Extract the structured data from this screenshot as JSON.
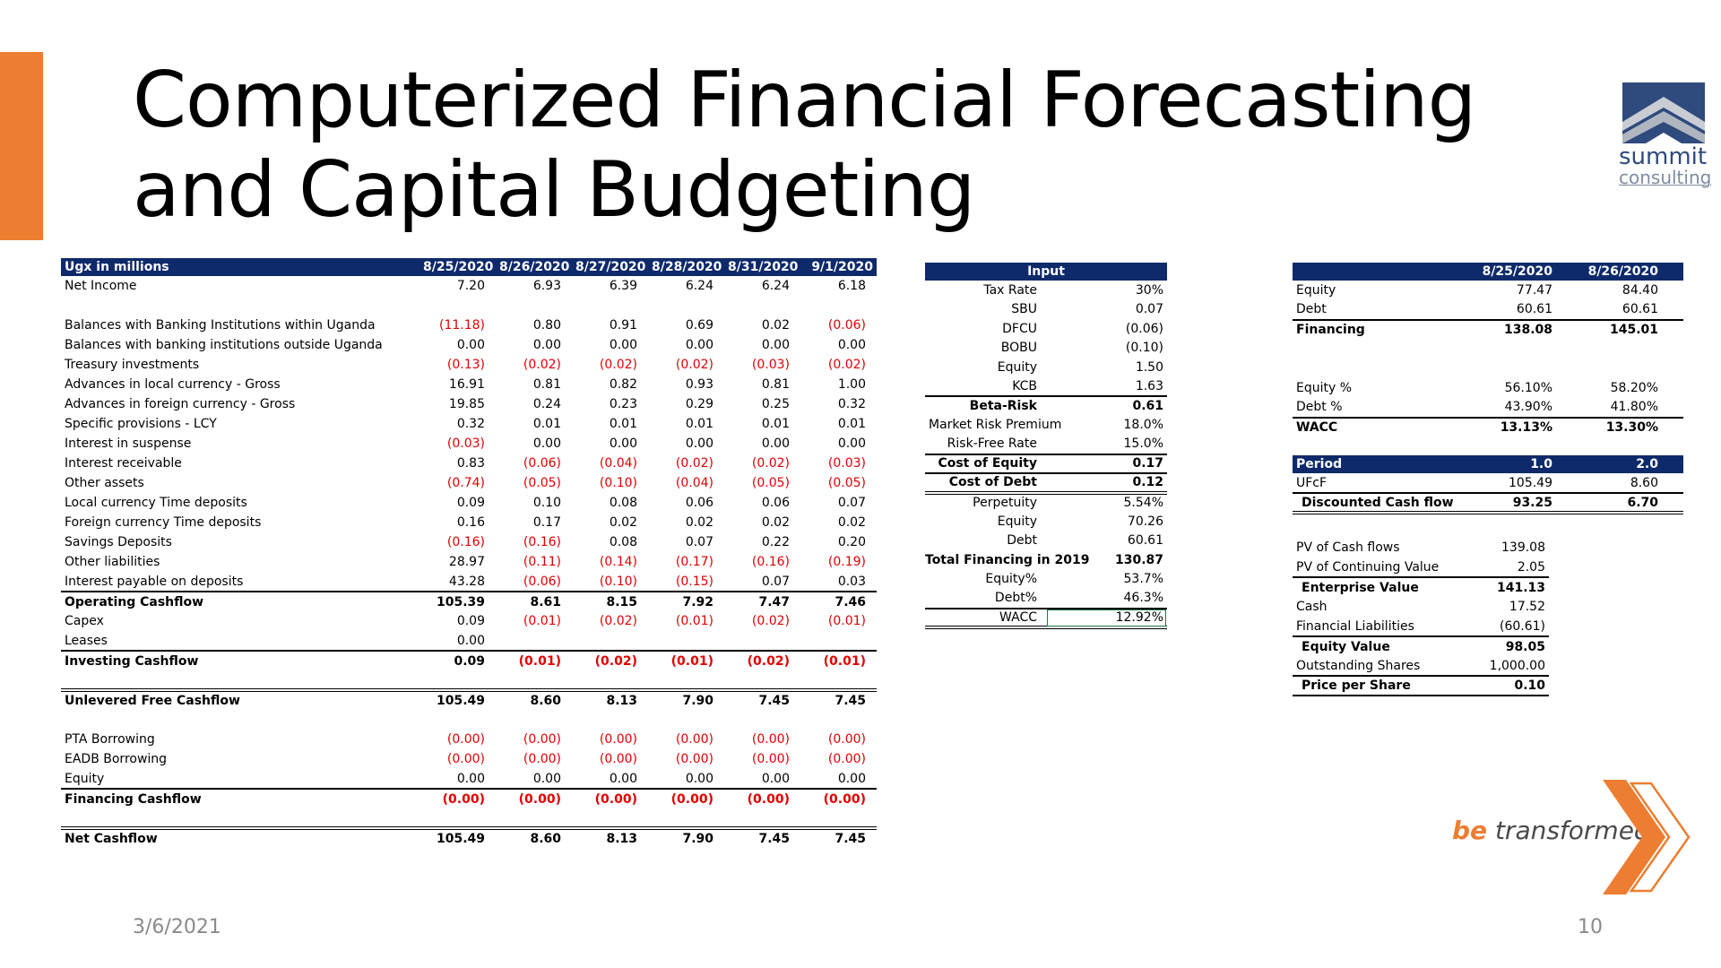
{
  "slide": {
    "title": "Computerized Financial Forecasting and Capital Budgeting",
    "date": "3/6/2021",
    "page_number": "10",
    "tagline_be": "be",
    "tagline_rest": " transformed",
    "logo_line1": "summit",
    "logo_line2": "consulting",
    "colors": {
      "accent": "#ed7d31",
      "header": "#0f2a6b",
      "negative": "#e00000"
    }
  },
  "cashflow": {
    "header": [
      "Ugx in millions",
      "8/25/2020",
      "8/26/2020",
      "8/27/2020",
      "8/28/2020",
      "8/31/2020",
      "9/1/2020"
    ],
    "rows": [
      {
        "label": "Net Income",
        "values": [
          "7.20",
          "6.93",
          "6.39",
          "6.24",
          "6.24",
          "6.18"
        ],
        "style": ""
      },
      {
        "label": "",
        "values": [
          "",
          "",
          "",
          "",
          "",
          ""
        ],
        "style": ""
      },
      {
        "label": "Balances with Banking Institutions within Uganda",
        "values": [
          "(11.18)",
          "0.80",
          "0.91",
          "0.69",
          "0.02",
          "(0.06)"
        ],
        "style": ""
      },
      {
        "label": "Balances with banking institutions outside Uganda",
        "values": [
          "0.00",
          "0.00",
          "0.00",
          "0.00",
          "0.00",
          "0.00"
        ],
        "style": ""
      },
      {
        "label": "Treasury investments",
        "values": [
          "(0.13)",
          "(0.02)",
          "(0.02)",
          "(0.02)",
          "(0.03)",
          "(0.02)"
        ],
        "style": ""
      },
      {
        "label": "Advances in local currency - Gross",
        "values": [
          "16.91",
          "0.81",
          "0.82",
          "0.93",
          "0.81",
          "1.00"
        ],
        "style": ""
      },
      {
        "label": "Advances in foreign currency - Gross",
        "values": [
          "19.85",
          "0.24",
          "0.23",
          "0.29",
          "0.25",
          "0.32"
        ],
        "style": ""
      },
      {
        "label": "Specific provisions - LCY",
        "values": [
          "0.32",
          "0.01",
          "0.01",
          "0.01",
          "0.01",
          "0.01"
        ],
        "style": ""
      },
      {
        "label": "Interest in suspense",
        "values": [
          "(0.03)",
          "0.00",
          "0.00",
          "0.00",
          "0.00",
          "0.00"
        ],
        "style": ""
      },
      {
        "label": "Interest receivable",
        "values": [
          "0.83",
          "(0.06)",
          "(0.04)",
          "(0.02)",
          "(0.02)",
          "(0.03)"
        ],
        "style": ""
      },
      {
        "label": "Other assets",
        "values": [
          "(0.74)",
          "(0.05)",
          "(0.10)",
          "(0.04)",
          "(0.05)",
          "(0.05)"
        ],
        "style": ""
      },
      {
        "label": "Local currency Time deposits",
        "values": [
          "0.09",
          "0.10",
          "0.08",
          "0.06",
          "0.06",
          "0.07"
        ],
        "style": ""
      },
      {
        "label": "Foreign currency Time  deposits",
        "values": [
          "0.16",
          "0.17",
          "0.02",
          "0.02",
          "0.02",
          "0.02"
        ],
        "style": ""
      },
      {
        "label": "Savings Deposits",
        "values": [
          "(0.16)",
          "(0.16)",
          "0.08",
          "0.07",
          "0.22",
          "0.20"
        ],
        "style": ""
      },
      {
        "label": "Other liabilities",
        "values": [
          "28.97",
          "(0.11)",
          "(0.14)",
          "(0.17)",
          "(0.16)",
          "(0.19)"
        ],
        "style": ""
      },
      {
        "label": "Interest payable on deposits",
        "values": [
          "43.28",
          "(0.06)",
          "(0.10)",
          "(0.15)",
          "0.07",
          "0.03"
        ],
        "style": ""
      },
      {
        "label": "Operating Cashflow",
        "values": [
          "105.39",
          "8.61",
          "8.15",
          "7.92",
          "7.47",
          "7.46"
        ],
        "style": "total"
      },
      {
        "label": "Capex",
        "values": [
          "0.09",
          "(0.01)",
          "(0.02)",
          "(0.01)",
          "(0.02)",
          "(0.01)"
        ],
        "style": ""
      },
      {
        "label": "Leases",
        "values": [
          "0.00",
          "",
          "",
          "",
          "",
          ""
        ],
        "style": ""
      },
      {
        "label": "Investing Cashflow",
        "values": [
          "0.09",
          "(0.01)",
          "(0.02)",
          "(0.01)",
          "(0.02)",
          "(0.01)"
        ],
        "style": "total"
      },
      {
        "label": "",
        "values": [
          "",
          "",
          "",
          "",
          "",
          ""
        ],
        "style": ""
      },
      {
        "label": "Unlevered Free Cashflow",
        "values": [
          "105.49",
          "8.60",
          "8.13",
          "7.90",
          "7.45",
          "7.45"
        ],
        "style": "dbl"
      },
      {
        "label": "",
        "values": [
          "",
          "",
          "",
          "",
          "",
          ""
        ],
        "style": ""
      },
      {
        "label": "PTA Borrowing",
        "values": [
          "(0.00)",
          "(0.00)",
          "(0.00)",
          "(0.00)",
          "(0.00)",
          "(0.00)"
        ],
        "style": ""
      },
      {
        "label": "EADB Borrowing",
        "values": [
          "(0.00)",
          "(0.00)",
          "(0.00)",
          "(0.00)",
          "(0.00)",
          "(0.00)"
        ],
        "style": ""
      },
      {
        "label": "Equity",
        "values": [
          "0.00",
          "0.00",
          "0.00",
          "0.00",
          "0.00",
          "0.00"
        ],
        "style": ""
      },
      {
        "label": "Financing Cashflow",
        "values": [
          "(0.00)",
          "(0.00)",
          "(0.00)",
          "(0.00)",
          "(0.00)",
          "(0.00)"
        ],
        "style": "total"
      },
      {
        "label": "",
        "values": [
          "",
          "",
          "",
          "",
          "",
          ""
        ],
        "style": ""
      },
      {
        "label": "Net Cashflow",
        "values": [
          "105.49",
          "8.60",
          "8.13",
          "7.90",
          "7.45",
          "7.45"
        ],
        "style": "dbl"
      }
    ]
  },
  "input": {
    "header": "Input",
    "rows": [
      {
        "label": "Tax Rate",
        "value": "30%",
        "style": ""
      },
      {
        "label": "SBU",
        "value": "0.07",
        "style": ""
      },
      {
        "label": "DFCU",
        "value": "(0.06)",
        "style": ""
      },
      {
        "label": "BOBU",
        "value": "(0.10)",
        "style": ""
      },
      {
        "label": "Equity",
        "value": "1.50",
        "style": ""
      },
      {
        "label": "KCB",
        "value": "1.63",
        "style": ""
      },
      {
        "label": "Beta-Risk",
        "value": "0.61",
        "style": "bold bt"
      },
      {
        "label": "Market Risk Premium",
        "value": "18.0%",
        "style": ""
      },
      {
        "label": "Risk-Free Rate",
        "value": "15.0%",
        "style": ""
      },
      {
        "label": "Cost of Equity",
        "value": "0.17",
        "style": "bold bt"
      },
      {
        "label": "Cost of Debt",
        "value": "0.12",
        "style": "bold bt"
      },
      {
        "label": "Perpetuity",
        "value": "5.54%",
        "style": "dbl"
      },
      {
        "label": "Equity",
        "value": "70.26",
        "style": ""
      },
      {
        "label": "Debt",
        "value": "60.61",
        "style": ""
      },
      {
        "label": "Total Financing in 2019",
        "value": "130.87",
        "style": "bold left"
      },
      {
        "label": "Equity%",
        "value": "53.7%",
        "style": ""
      },
      {
        "label": "Debt%",
        "value": "46.3%",
        "style": ""
      },
      {
        "label": "WACC",
        "value": "12.92%",
        "style": "wacc"
      }
    ]
  },
  "financing": {
    "header": [
      "",
      "8/25/2020",
      "8/26/2020"
    ],
    "rows": [
      {
        "label": "Equity",
        "values": [
          "77.47",
          "84.40"
        ],
        "style": ""
      },
      {
        "label": "Debt",
        "values": [
          "60.61",
          "60.61"
        ],
        "style": ""
      },
      {
        "label": "Financing",
        "values": [
          "138.08",
          "145.01"
        ],
        "style": "bold bt"
      },
      {
        "label": "",
        "values": [
          "",
          ""
        ],
        "style": ""
      },
      {
        "label": "",
        "values": [
          "",
          ""
        ],
        "style": ""
      },
      {
        "label": "Equity %",
        "values": [
          "56.10%",
          "58.20%"
        ],
        "style": ""
      },
      {
        "label": "Debt %",
        "values": [
          "43.90%",
          "41.80%"
        ],
        "style": ""
      },
      {
        "label": "WACC",
        "values": [
          "13.13%",
          "13.30%"
        ],
        "style": "bold bt"
      }
    ]
  },
  "period": {
    "header": [
      "Period",
      "1.0",
      "2.0"
    ],
    "rows": [
      {
        "label": "UFcF",
        "values": [
          "105.49",
          "8.60"
        ],
        "style": ""
      },
      {
        "label": "Discounted Cash flow",
        "values": [
          "93.25",
          "6.70"
        ],
        "style": "bold dbl"
      }
    ]
  },
  "valuation": {
    "rows": [
      {
        "label": "PV of Cash flows",
        "value": "139.08",
        "style": ""
      },
      {
        "label": "PV of Continuing Value",
        "value": "2.05",
        "style": ""
      },
      {
        "label": "Enterprise Value",
        "value": "141.13",
        "style": "bold bt"
      },
      {
        "label": "Cash",
        "value": "17.52",
        "style": ""
      },
      {
        "label": "Financial Liabilities",
        "value": "(60.61)",
        "style": ""
      },
      {
        "label": "Equity Value",
        "value": "98.05",
        "style": "bold bt"
      },
      {
        "label": "Outstanding Shares",
        "value": "1,000.00",
        "style": ""
      },
      {
        "label": "Price per Share",
        "value": "0.10",
        "style": "bold bt bb"
      }
    ]
  }
}
